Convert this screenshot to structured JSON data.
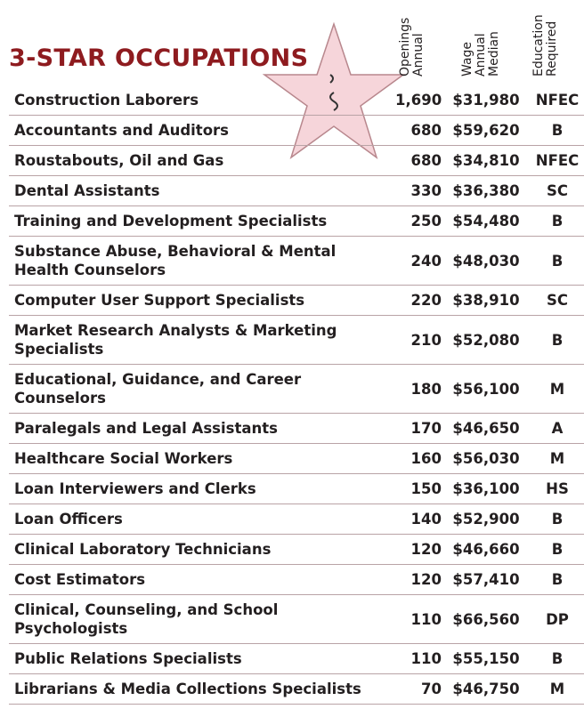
{
  "title": "3-STAR OCCUPATIONS",
  "columns": [
    [
      "Annual",
      "Openings"
    ],
    [
      "Median",
      "Annual",
      "Wage"
    ],
    [
      "Required",
      "Education"
    ]
  ],
  "rows": [
    [
      "Construction Laborers",
      "1,690",
      "$31,980",
      "NFEC"
    ],
    [
      "Accountants and Auditors",
      "680",
      "$59,620",
      "B"
    ],
    [
      "Roustabouts, Oil and Gas",
      "680",
      "$34,810",
      "NFEC"
    ],
    [
      "Dental Assistants",
      "330",
      "$36,380",
      "SC"
    ],
    [
      "Training and Development Specialists",
      "250",
      "$54,480",
      "B"
    ],
    [
      "Substance Abuse, Behavioral & Mental Health Counselors",
      "240",
      "$48,030",
      "B"
    ],
    [
      "Computer User Support Specialists",
      "220",
      "$38,910",
      "SC"
    ],
    [
      "Market Research Analysts & Marketing Specialists",
      "210",
      "$52,080",
      "B"
    ],
    [
      "Educational, Guidance, and Career Counselors",
      "180",
      "$56,100",
      "M"
    ],
    [
      "Paralegals and Legal Assistants",
      "170",
      "$46,650",
      "A"
    ],
    [
      "Healthcare Social Workers",
      "160",
      "$56,030",
      "M"
    ],
    [
      "Loan Interviewers and Clerks",
      "150",
      "$36,100",
      "HS"
    ],
    [
      "Loan Officers",
      "140",
      "$52,900",
      "B"
    ],
    [
      "Clinical Laboratory Technicians",
      "120",
      "$46,660",
      "B"
    ],
    [
      "Cost Estimators",
      "120",
      "$57,410",
      "B"
    ],
    [
      "Clinical, Counseling, and School Psychologists",
      "110",
      "$66,560",
      "DP"
    ],
    [
      "Public Relations Specialists",
      "110",
      "$55,150",
      "B"
    ],
    [
      "Librarians & Media Collections Specialists",
      "70",
      "$46,750",
      "M"
    ]
  ]
}
